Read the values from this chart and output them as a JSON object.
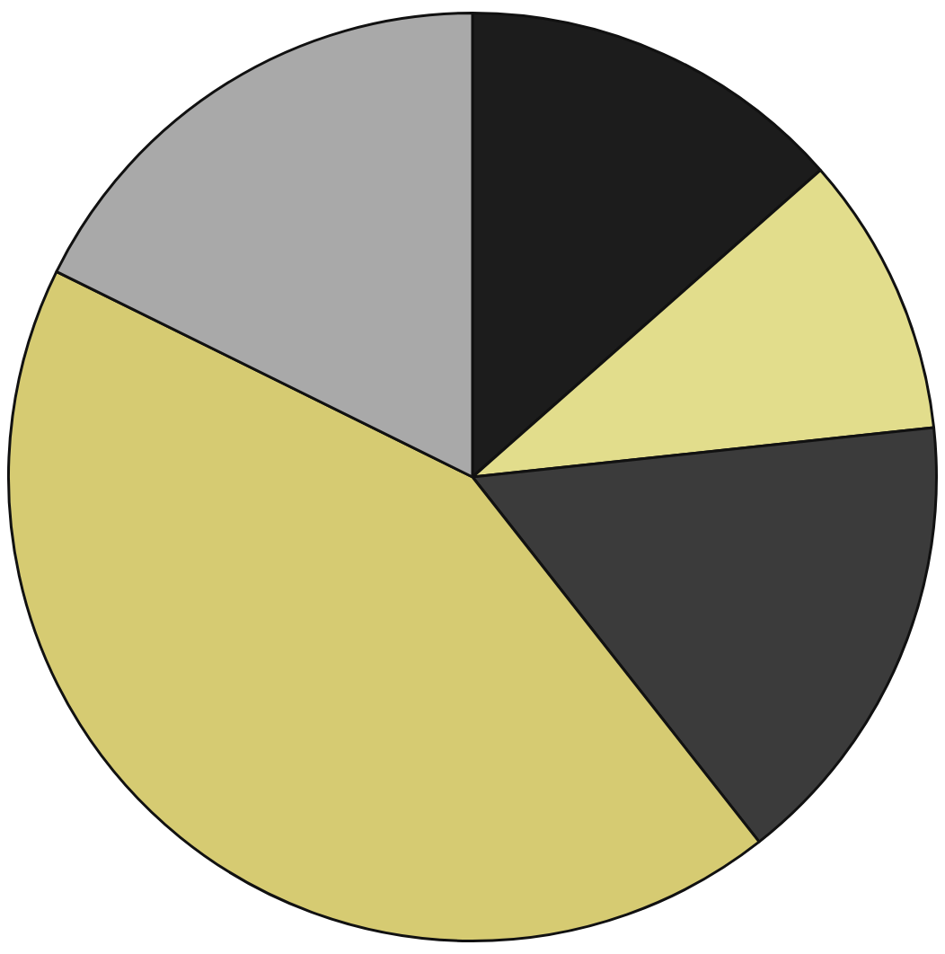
{
  "chart_data": {
    "type": "pie",
    "categories": [
      null,
      null,
      null,
      null,
      null
    ],
    "values": [
      13.5,
      9.8,
      16.1,
      42.9,
      17.7
    ],
    "colors": [
      "#1c1c1c",
      "#e2dd8c",
      "#3b3b3b",
      "#d6cb72",
      "#a9a9a9"
    ],
    "legend": false
  }
}
